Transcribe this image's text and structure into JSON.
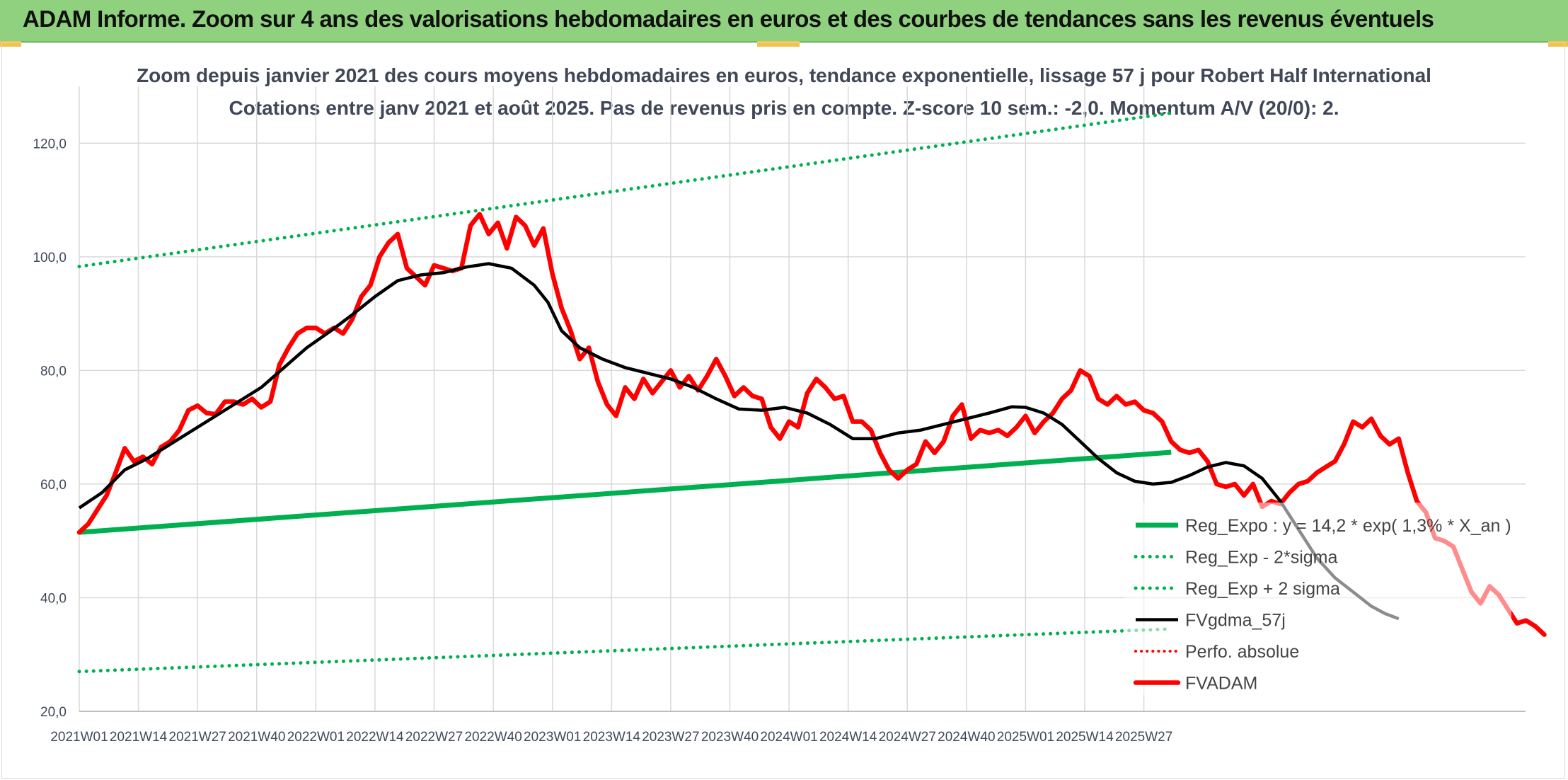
{
  "header": {
    "title": "ADAM Informe. Zoom sur 4 ans des valorisations hebdomadaires en euros et des courbes de tendances sans les revenus éventuels"
  },
  "colors": {
    "banner": "#8fd17f",
    "trend_green": "#00b050",
    "price_red": "#ff0000",
    "smooth_black": "#000000",
    "grid": "#d9d9d9"
  },
  "chart_data": {
    "type": "line",
    "title_line1": "Zoom depuis janvier 2021 des cours moyens hebdomadaires en euros, tendance exponentielle, lissage 57 j pour Robert Half International",
    "title_line2": "Cotations entre janv 2021 et août 2025. Pas de revenus pris en compte. Z-score 10 sem.: -2,0. Momentum A/V (20/0): 2.",
    "ylim": [
      20,
      130
    ],
    "yticks": [
      "20,0",
      "40,0",
      "60,0",
      "80,0",
      "100,0",
      "120,0"
    ],
    "xticks": [
      "2021W01",
      "2021W14",
      "2021W27",
      "2021W40",
      "2022W01",
      "2022W14",
      "2022W27",
      "2022W40",
      "2023W01",
      "2023W14",
      "2023W27",
      "2023W40",
      "2024W01",
      "2024W14",
      "2024W27",
      "2024W40",
      "2025W01",
      "2025W14",
      "2025W27"
    ],
    "week_count": 241,
    "grid": true,
    "legend_position": "bottom-right",
    "legend": [
      "Reg_Expo : y = 14,2 * exp( 1,3% *  X_an )",
      "Reg_Exp - 2*sigma",
      "Reg_Exp + 2 sigma",
      "FVgdma_57j",
      "Perfo. absolue",
      "FVADAM"
    ],
    "series": [
      {
        "name": "Reg_Expo : y = 14,2 * exp( 1,3% *  X_an )",
        "style": "solid-green",
        "points": [
          [
            0,
            51.5
          ],
          [
            240,
            65.6
          ]
        ]
      },
      {
        "name": "Reg_Exp - 2*sigma",
        "style": "dotted-green",
        "points": [
          [
            0,
            27.0
          ],
          [
            240,
            34.5
          ]
        ]
      },
      {
        "name": "Reg_Exp + 2 sigma",
        "style": "dotted-green",
        "points": [
          [
            0,
            98.3
          ],
          [
            240,
            125.3
          ]
        ]
      },
      {
        "name": "FVgdma_57j",
        "style": "solid-black",
        "points": [
          [
            0,
            55.8
          ],
          [
            5,
            58.5
          ],
          [
            10,
            62.5
          ],
          [
            15,
            64.5
          ],
          [
            20,
            67.0
          ],
          [
            25,
            69.5
          ],
          [
            30,
            72.0
          ],
          [
            35,
            74.5
          ],
          [
            40,
            77.0
          ],
          [
            45,
            80.5
          ],
          [
            50,
            84.0
          ],
          [
            55,
            86.8
          ],
          [
            60,
            89.8
          ],
          [
            65,
            93.0
          ],
          [
            70,
            95.8
          ],
          [
            75,
            96.8
          ],
          [
            80,
            97.2
          ],
          [
            85,
            98.2
          ],
          [
            90,
            98.8
          ],
          [
            95,
            98.0
          ],
          [
            100,
            95.0
          ],
          [
            103,
            92.0
          ],
          [
            106,
            87.0
          ],
          [
            110,
            84.0
          ],
          [
            115,
            82.0
          ],
          [
            120,
            80.5
          ],
          [
            125,
            79.5
          ],
          [
            130,
            78.5
          ],
          [
            135,
            77.0
          ],
          [
            140,
            75.0
          ],
          [
            145,
            73.2
          ],
          [
            150,
            73.0
          ],
          [
            155,
            73.5
          ],
          [
            160,
            72.5
          ],
          [
            165,
            70.5
          ],
          [
            170,
            68.0
          ],
          [
            175,
            68.0
          ],
          [
            180,
            69.0
          ],
          [
            185,
            69.5
          ],
          [
            190,
            70.5
          ],
          [
            195,
            71.5
          ],
          [
            200,
            72.5
          ],
          [
            205,
            73.6
          ],
          [
            208,
            73.5
          ],
          [
            212,
            72.5
          ],
          [
            216,
            70.5
          ],
          [
            220,
            67.5
          ],
          [
            224,
            64.5
          ],
          [
            228,
            62.0
          ],
          [
            232,
            60.5
          ],
          [
            236,
            60.0
          ],
          [
            240,
            60.3
          ],
          [
            244,
            61.5
          ],
          [
            248,
            63.0
          ],
          [
            252,
            63.8
          ],
          [
            256,
            63.2
          ],
          [
            260,
            61.0
          ],
          [
            264,
            57.0
          ],
          [
            268,
            52.0
          ],
          [
            272,
            47.0
          ],
          [
            276,
            43.5
          ],
          [
            280,
            41.0
          ],
          [
            284,
            38.5
          ],
          [
            287,
            37.2
          ],
          [
            290,
            36.3
          ]
        ]
      },
      {
        "name": "Perfo. absolue",
        "style": "dotted-red",
        "points": []
      },
      {
        "name": "FVADAM",
        "style": "solid-red",
        "points": [
          [
            0,
            51.5
          ],
          [
            2,
            53.0
          ],
          [
            4,
            55.5
          ],
          [
            6,
            58.0
          ],
          [
            8,
            62.0
          ],
          [
            10,
            66.3
          ],
          [
            12,
            64.0
          ],
          [
            14,
            64.8
          ],
          [
            16,
            63.5
          ],
          [
            18,
            66.5
          ],
          [
            20,
            67.5
          ],
          [
            22,
            69.5
          ],
          [
            24,
            73.0
          ],
          [
            26,
            73.8
          ],
          [
            28,
            72.5
          ],
          [
            30,
            72.3
          ],
          [
            32,
            74.5
          ],
          [
            34,
            74.5
          ],
          [
            36,
            74.0
          ],
          [
            38,
            75.0
          ],
          [
            40,
            73.5
          ],
          [
            42,
            74.5
          ],
          [
            44,
            81.0
          ],
          [
            46,
            84.0
          ],
          [
            48,
            86.5
          ],
          [
            50,
            87.5
          ],
          [
            52,
            87.5
          ],
          [
            54,
            86.5
          ],
          [
            56,
            87.5
          ],
          [
            58,
            86.5
          ],
          [
            60,
            89.0
          ],
          [
            62,
            93.0
          ],
          [
            64,
            95.0
          ],
          [
            66,
            100.0
          ],
          [
            68,
            102.5
          ],
          [
            70,
            104.0
          ],
          [
            72,
            98.0
          ],
          [
            74,
            96.5
          ],
          [
            76,
            95.0
          ],
          [
            78,
            98.5
          ],
          [
            80,
            98.0
          ],
          [
            82,
            97.5
          ],
          [
            84,
            98.0
          ],
          [
            86,
            105.5
          ],
          [
            88,
            107.5
          ],
          [
            90,
            104.0
          ],
          [
            92,
            106.0
          ],
          [
            94,
            101.5
          ],
          [
            96,
            107.0
          ],
          [
            98,
            105.5
          ],
          [
            100,
            102.0
          ],
          [
            102,
            105.0
          ],
          [
            104,
            97.0
          ],
          [
            106,
            91.0
          ],
          [
            108,
            87.0
          ],
          [
            110,
            82.0
          ],
          [
            112,
            84.0
          ],
          [
            114,
            78.0
          ],
          [
            116,
            74.0
          ],
          [
            118,
            72.0
          ],
          [
            120,
            77.0
          ],
          [
            122,
            75.0
          ],
          [
            124,
            78.5
          ],
          [
            126,
            76.0
          ],
          [
            128,
            78.0
          ],
          [
            130,
            80.0
          ],
          [
            132,
            77.0
          ],
          [
            134,
            79.0
          ],
          [
            136,
            76.5
          ],
          [
            138,
            79.0
          ],
          [
            140,
            82.0
          ],
          [
            142,
            79.0
          ],
          [
            144,
            75.5
          ],
          [
            146,
            77.0
          ],
          [
            148,
            75.5
          ],
          [
            150,
            75.0
          ],
          [
            152,
            70.0
          ],
          [
            154,
            68.0
          ],
          [
            156,
            71.0
          ],
          [
            158,
            70.0
          ],
          [
            160,
            76.0
          ],
          [
            162,
            78.5
          ],
          [
            164,
            77.0
          ],
          [
            166,
            75.0
          ],
          [
            168,
            75.5
          ],
          [
            170,
            71.0
          ],
          [
            172,
            71.0
          ],
          [
            174,
            69.5
          ],
          [
            176,
            65.5
          ],
          [
            178,
            62.5
          ],
          [
            180,
            61.0
          ],
          [
            182,
            62.5
          ],
          [
            184,
            63.5
          ],
          [
            186,
            67.5
          ],
          [
            188,
            65.5
          ],
          [
            190,
            67.5
          ],
          [
            192,
            72.0
          ],
          [
            194,
            74.0
          ],
          [
            196,
            68.0
          ],
          [
            198,
            69.5
          ],
          [
            200,
            69.0
          ],
          [
            202,
            69.5
          ],
          [
            204,
            68.5
          ],
          [
            206,
            70.0
          ],
          [
            208,
            72.0
          ],
          [
            210,
            69.0
          ],
          [
            212,
            71.0
          ],
          [
            214,
            72.5
          ],
          [
            216,
            75.0
          ],
          [
            218,
            76.5
          ],
          [
            220,
            80.0
          ],
          [
            222,
            79.0
          ],
          [
            224,
            75.0
          ],
          [
            226,
            74.0
          ],
          [
            228,
            75.5
          ],
          [
            230,
            74.0
          ],
          [
            232,
            74.5
          ],
          [
            234,
            73.0
          ],
          [
            236,
            72.5
          ],
          [
            238,
            71.0
          ],
          [
            240,
            67.5
          ],
          [
            242,
            66.0
          ],
          [
            244,
            65.5
          ],
          [
            246,
            66.0
          ],
          [
            248,
            64.0
          ],
          [
            250,
            60.0
          ],
          [
            252,
            59.5
          ],
          [
            254,
            60.0
          ],
          [
            256,
            58.0
          ],
          [
            258,
            60.0
          ],
          [
            260,
            56.0
          ],
          [
            262,
            57.0
          ],
          [
            264,
            56.5
          ],
          [
            266,
            58.5
          ],
          [
            268,
            60.0
          ],
          [
            270,
            60.5
          ],
          [
            272,
            62.0
          ],
          [
            274,
            63.0
          ],
          [
            276,
            64.0
          ],
          [
            278,
            67.0
          ],
          [
            280,
            71.0
          ],
          [
            282,
            70.0
          ],
          [
            284,
            71.5
          ],
          [
            286,
            68.5
          ],
          [
            288,
            67.0
          ],
          [
            290,
            68.0
          ],
          [
            292,
            62.0
          ],
          [
            294,
            57.0
          ],
          [
            296,
            55.0
          ],
          [
            298,
            50.5
          ],
          [
            300,
            50.0
          ],
          [
            302,
            49.0
          ],
          [
            304,
            45.0
          ],
          [
            306,
            41.0
          ],
          [
            308,
            39.0
          ],
          [
            310,
            42.0
          ],
          [
            312,
            40.5
          ],
          [
            314,
            38.0
          ],
          [
            316,
            35.5
          ],
          [
            318,
            36.0
          ],
          [
            320,
            35.0
          ],
          [
            322,
            33.5
          ]
        ]
      }
    ]
  }
}
